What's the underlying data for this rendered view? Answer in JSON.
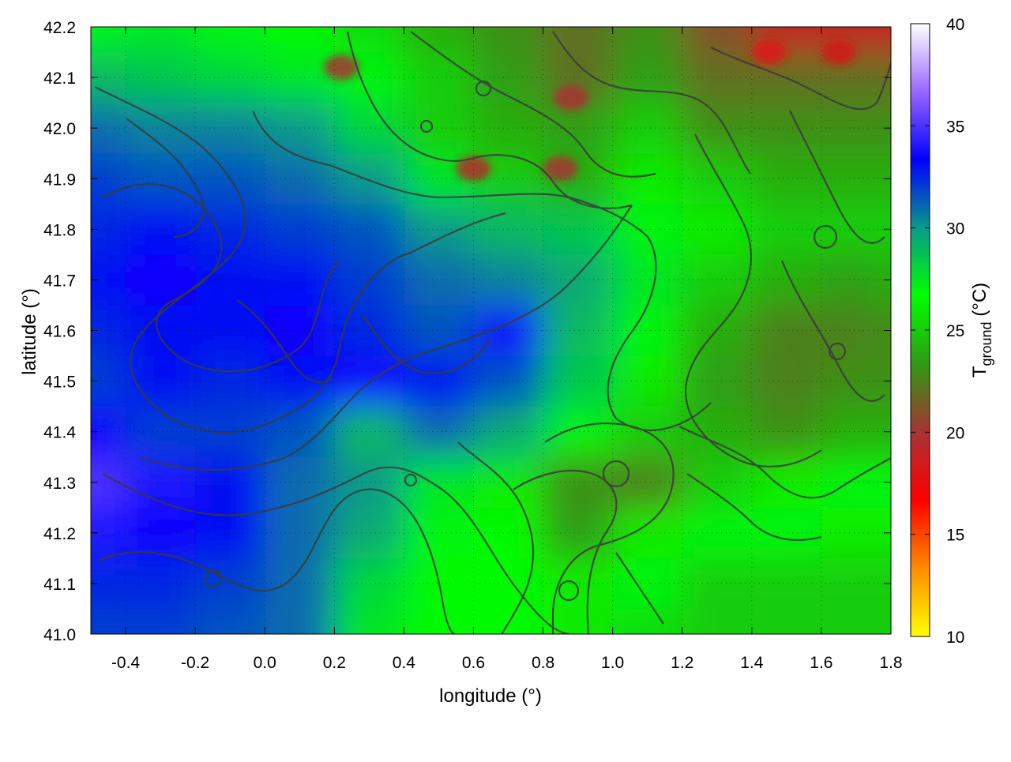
{
  "chart_data": {
    "type": "heatmap",
    "title": "",
    "xlabel": "longitude (°)",
    "ylabel": "latitude (°)",
    "colorbar_label": {
      "main": "T",
      "sub": "ground",
      "unit": " (°C)"
    },
    "xlim": [
      -0.5,
      1.8
    ],
    "ylim": [
      41.0,
      42.2
    ],
    "x_ticks": [
      -0.4,
      -0.2,
      0.0,
      0.2,
      0.4,
      0.6,
      0.8,
      1.0,
      1.2,
      1.4,
      1.6,
      1.8
    ],
    "x_tick_labels": [
      "-0.4",
      "-0.2",
      "0.0",
      "0.2",
      "0.4",
      "0.6",
      "0.8",
      "1.0",
      "1.2",
      "1.4",
      "1.6",
      "1.8"
    ],
    "y_ticks": [
      41.0,
      41.1,
      41.2,
      41.3,
      41.4,
      41.5,
      41.6,
      41.7,
      41.8,
      41.9,
      42.0,
      42.1,
      42.2
    ],
    "y_tick_labels": [
      "41.0",
      "41.1",
      "41.2",
      "41.3",
      "41.4",
      "41.5",
      "41.6",
      "41.7",
      "41.8",
      "41.9",
      "42.0",
      "42.1",
      "42.2"
    ],
    "colorbar_range": [
      10,
      40
    ],
    "colorbar_ticks": [
      10,
      15,
      20,
      25,
      30,
      35,
      40
    ],
    "colorbar_tick_labels": [
      "10",
      "15",
      "20",
      "25",
      "30",
      "35",
      "40"
    ],
    "colormap": [
      "#ffff00",
      "#ff8c00",
      "#ff0000",
      "#a83232",
      "#309a15",
      "#00ff00",
      "#0a9a8a",
      "#0000ff",
      "#9966ff",
      "#ffffff"
    ],
    "grid": true,
    "legend": "none",
    "contours": "dark grey terrain contour lines overlaid",
    "temperature_grid": {
      "lon": [
        -0.5,
        -0.3,
        -0.1,
        0.1,
        0.3,
        0.5,
        0.7,
        0.9,
        1.1,
        1.3,
        1.5,
        1.7,
        1.8
      ],
      "lat": [
        42.2,
        42.1,
        42.0,
        41.9,
        41.8,
        41.7,
        41.6,
        41.5,
        41.4,
        41.3,
        41.2,
        41.1,
        41.0
      ],
      "values_degC": [
        [
          27,
          27.5,
          27,
          26.5,
          25.5,
          24,
          23,
          22,
          23,
          21,
          19,
          19,
          19
        ],
        [
          29,
          28.5,
          28,
          27.5,
          27,
          25,
          23.5,
          22,
          23.5,
          22,
          22,
          22,
          22
        ],
        [
          31,
          30.5,
          30.5,
          30,
          28,
          25,
          24,
          23.5,
          25,
          23,
          23,
          23,
          23
        ],
        [
          32,
          31.5,
          31.5,
          31,
          30,
          27.5,
          25,
          24,
          26,
          25,
          24,
          24,
          24
        ],
        [
          32.5,
          33,
          32.5,
          32,
          31.5,
          30,
          29,
          28.5,
          27,
          26,
          25,
          25,
          25
        ],
        [
          33,
          33.5,
          33,
          33,
          32,
          31,
          30.5,
          29.5,
          27.5,
          25,
          24,
          23.5,
          24
        ],
        [
          32.5,
          33,
          33,
          33.5,
          32.5,
          31.5,
          33.5,
          29,
          27,
          24,
          22.5,
          22.5,
          23
        ],
        [
          32,
          33,
          32.5,
          33,
          33.5,
          33,
          31.5,
          28.5,
          26,
          23.5,
          22.5,
          23,
          23
        ],
        [
          33.5,
          32,
          32,
          31.5,
          29,
          31,
          29.5,
          27,
          25,
          24,
          23,
          24,
          24
        ],
        [
          35,
          34,
          33,
          31,
          30,
          27.5,
          26,
          23,
          22.5,
          25,
          26,
          27,
          27
        ],
        [
          34,
          33.5,
          33,
          31,
          29.5,
          27,
          26.5,
          23.5,
          26,
          27,
          27,
          26,
          26
        ],
        [
          32.5,
          32.5,
          32,
          31,
          28,
          26.5,
          26.5,
          26,
          27,
          25,
          25,
          25,
          25
        ],
        [
          32,
          32,
          31.5,
          31,
          27.5,
          26.5,
          26.5,
          26,
          25.5,
          25,
          25,
          25,
          25
        ]
      ]
    },
    "hot_spots": [
      {
        "lon": 1.45,
        "lat": 42.15,
        "value_degC": 18
      },
      {
        "lon": 1.65,
        "lat": 42.15,
        "value_degC": 18.5
      },
      {
        "lon": 0.6,
        "lat": 41.92,
        "value_degC": 19.5
      },
      {
        "lon": 0.85,
        "lat": 41.92,
        "value_degC": 20
      },
      {
        "lon": 0.22,
        "lat": 42.12,
        "value_degC": 20
      },
      {
        "lon": 0.88,
        "lat": 42.06,
        "value_degC": 20
      }
    ]
  }
}
